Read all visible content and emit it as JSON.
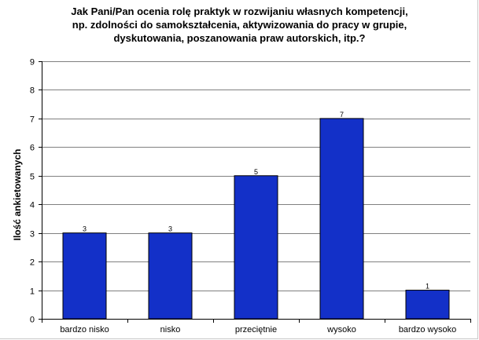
{
  "chart_data": {
    "type": "bar",
    "title_lines": [
      "Jak Pani/Pan ocenia rolę praktyk w rozwijaniu własnych kompetencji,",
      "np. zdolności do samokształcenia, aktywizowania do pracy w grupie,",
      "dyskutowania, poszanowania praw autorskich, itp.?"
    ],
    "xlabel": "",
    "ylabel": "Ilość ankietowanych",
    "categories": [
      "bardzo nisko",
      "nisko",
      "przeciętnie",
      "wysoko",
      "bardzo wysoko"
    ],
    "values": [
      3,
      3,
      5,
      7,
      1
    ],
    "data_labels": [
      "3",
      "3",
      "5",
      "7",
      "1"
    ],
    "ylim": [
      0,
      9
    ],
    "yticks": [
      0,
      1,
      2,
      3,
      4,
      5,
      6,
      7,
      8,
      9
    ],
    "grid": true,
    "legend": "none",
    "bar_color": "#1330c8",
    "bar_edge_color": "#000000",
    "grid_color": "#808080"
  }
}
